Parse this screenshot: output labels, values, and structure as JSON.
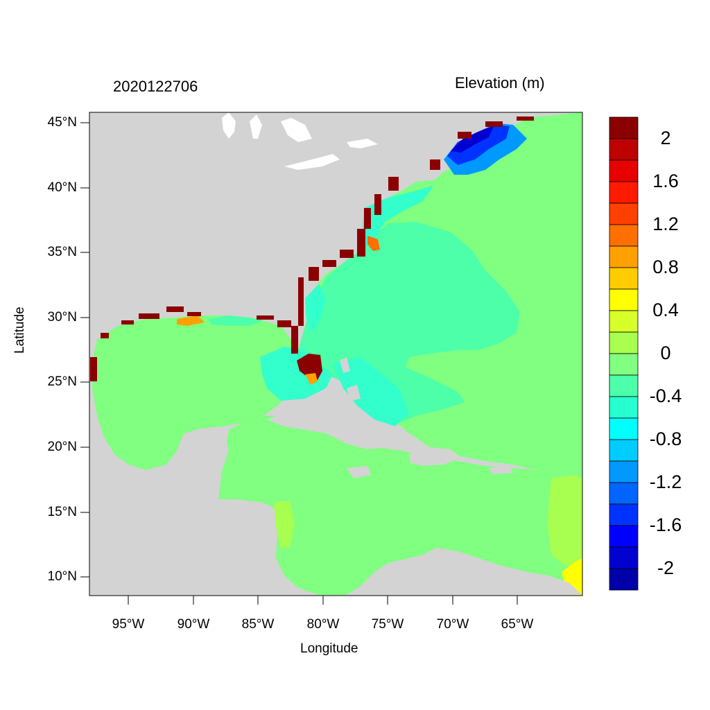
{
  "map": {
    "date_label": "2020122706",
    "variable_label": "Elevation (m)",
    "xlabel": "Longitude",
    "ylabel": "Latitude",
    "lat_ticks": [
      "45°N",
      "40°N",
      "35°N",
      "30°N",
      "25°N",
      "20°N",
      "15°N",
      "10°N"
    ],
    "lon_ticks": [
      "95°W",
      "90°W",
      "85°W",
      "80°W",
      "75°W",
      "70°W",
      "65°W"
    ],
    "colors": {
      "land": "#d3d3d3",
      "ocean_zero": "#80ff80",
      "ocean_neg02": "#4dffa8",
      "ocean_neg04": "#33ffcc",
      "surge_high": "#8b0000",
      "gulf_of_maine": "#0033ff"
    }
  },
  "colorbar": {
    "labels": [
      "2",
      "1.6",
      "1.2",
      "0.8",
      "0.4",
      "0",
      "-0.4",
      "-0.8",
      "-1.2",
      "-1.6",
      "-2"
    ],
    "colors": [
      "#8b0000",
      "#be0000",
      "#e60000",
      "#ff1a00",
      "#ff4000",
      "#ff7000",
      "#ffa000",
      "#ffcc00",
      "#ffff00",
      "#d7ff2a",
      "#a8ff50",
      "#80ff80",
      "#4dffa8",
      "#26ffcf",
      "#00ffff",
      "#00ccff",
      "#0099ff",
      "#0066ff",
      "#0033ff",
      "#0000ff",
      "#0000d0",
      "#0000a8"
    ]
  }
}
